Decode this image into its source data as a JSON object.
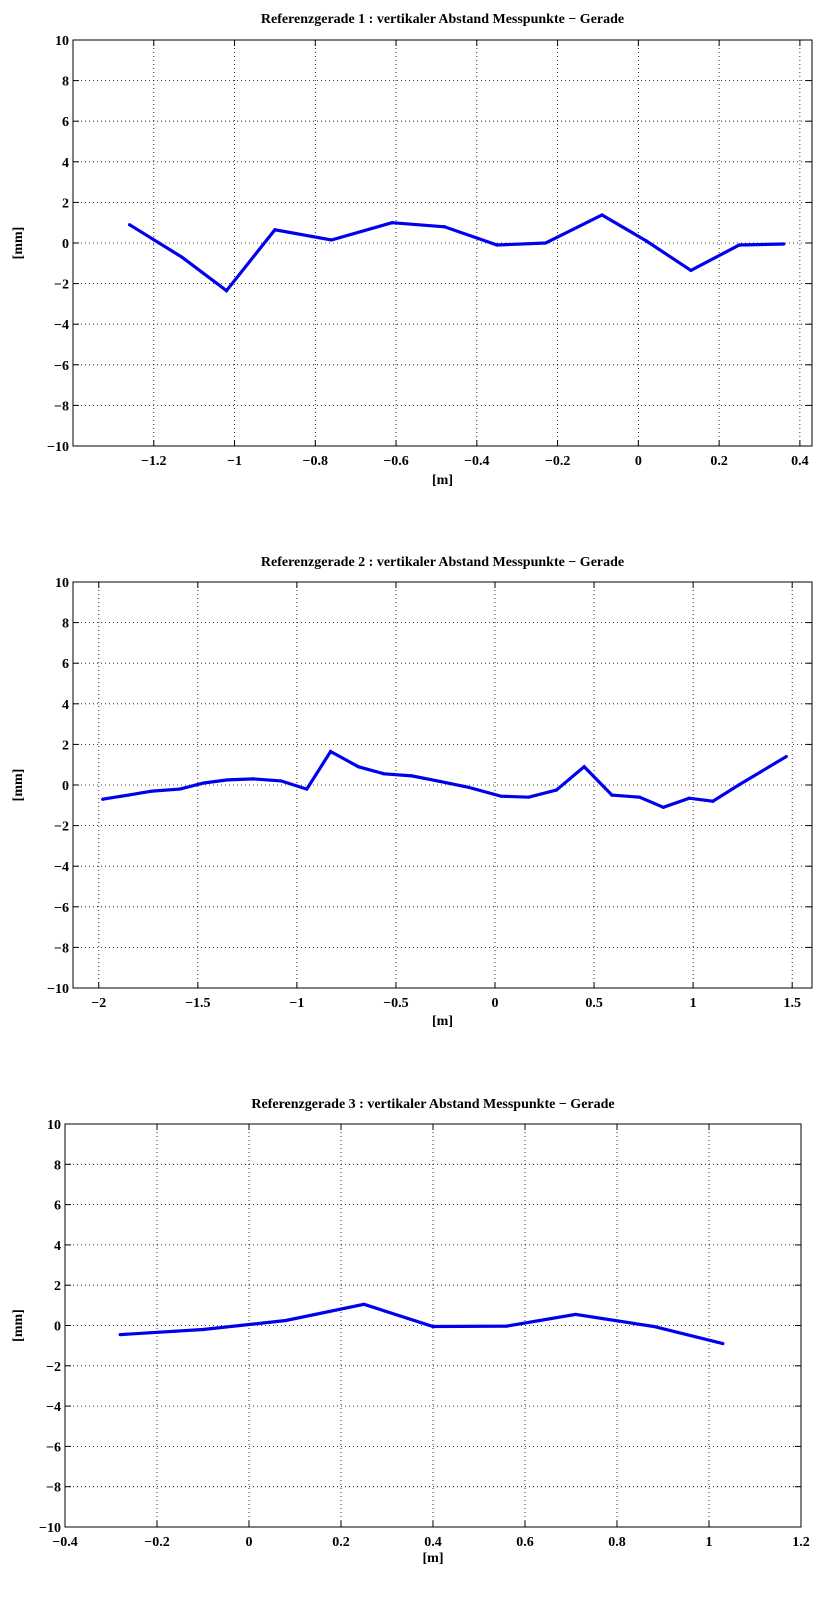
{
  "chart_data": [
    {
      "type": "line",
      "title": "Referenzgerade 1 : vertikaler Abstand Messpunkte − Gerade",
      "xlabel": "[m]",
      "ylabel": "[mm]",
      "xlim": [
        -1.4,
        0.43
      ],
      "ylim": [
        -10,
        10
      ],
      "xticks": [
        -1.2,
        -1,
        -0.8,
        -0.6,
        -0.4,
        -0.2,
        0,
        0.2,
        0.4
      ],
      "xtick_labels": [
        "−1.2",
        "−1",
        "−0.8",
        "−0.6",
        "−0.4",
        "−0.2",
        "0",
        "0.2",
        "0.4"
      ],
      "yticks": [
        -10,
        -8,
        -6,
        -4,
        -2,
        0,
        2,
        4,
        6,
        8,
        10
      ],
      "ytick_labels": [
        "−10",
        "−8",
        "−6",
        "−4",
        "−2",
        "0",
        "2",
        "4",
        "6",
        "8",
        "10"
      ],
      "grid": true,
      "color": "#0000ee",
      "x": [
        -1.26,
        -1.13,
        -1.02,
        -0.9,
        -0.76,
        -0.61,
        -0.48,
        -0.35,
        -0.23,
        -0.09,
        0.02,
        0.13,
        0.25,
        0.36
      ],
      "y": [
        0.9,
        -0.7,
        -2.35,
        0.65,
        0.15,
        1.0,
        0.8,
        -0.1,
        0.0,
        1.38,
        0.1,
        -1.35,
        -0.1,
        -0.05
      ]
    },
    {
      "type": "line",
      "title": "Referenzgerade 2 : vertikaler Abstand Messpunkte − Gerade",
      "xlabel": "[m]",
      "ylabel": "[mm]",
      "xlim": [
        -2.13,
        1.6
      ],
      "ylim": [
        -10,
        10
      ],
      "xticks": [
        -2,
        -1.5,
        -1,
        -0.5,
        0,
        0.5,
        1,
        1.5
      ],
      "xtick_labels": [
        "−2",
        "−1.5",
        "−1",
        "−0.5",
        "0",
        "0.5",
        "1",
        "1.5"
      ],
      "yticks": [
        -10,
        -8,
        -6,
        -4,
        -2,
        0,
        2,
        4,
        6,
        8,
        10
      ],
      "ytick_labels": [
        "−10",
        "−8",
        "−6",
        "−4",
        "−2",
        "0",
        "2",
        "4",
        "6",
        "8",
        "10"
      ],
      "grid": true,
      "color": "#0000ee",
      "x": [
        -1.98,
        -1.85,
        -1.73,
        -1.59,
        -1.47,
        -1.35,
        -1.22,
        -1.08,
        -0.95,
        -0.83,
        -0.69,
        -0.56,
        -0.42,
        -0.29,
        -0.14,
        0.03,
        0.17,
        0.31,
        0.45,
        0.59,
        0.73,
        0.85,
        0.98,
        1.1,
        1.23,
        1.47
      ],
      "y": [
        -0.7,
        -0.5,
        -0.3,
        -0.2,
        0.1,
        0.25,
        0.3,
        0.2,
        -0.2,
        1.65,
        0.9,
        0.55,
        0.45,
        0.2,
        -0.1,
        -0.55,
        -0.6,
        -0.25,
        0.9,
        -0.5,
        -0.6,
        -1.1,
        -0.65,
        -0.8,
        0.0,
        1.4
      ]
    },
    {
      "type": "line",
      "title": "Referenzgerade 3 : vertikaler Abstand Messpunkte − Gerade",
      "xlabel": "[m]",
      "ylabel": "[mm]",
      "xlim": [
        -0.4,
        1.2
      ],
      "ylim": [
        -10,
        10
      ],
      "xticks": [
        -0.4,
        -0.2,
        0,
        0.2,
        0.4,
        0.6,
        0.8,
        1,
        1.2
      ],
      "xtick_labels": [
        "−0.4",
        "−0.2",
        "0",
        "0.2",
        "0.4",
        "0.6",
        "0.8",
        "1",
        "1.2"
      ],
      "yticks": [
        -10,
        -8,
        -6,
        -4,
        -2,
        0,
        2,
        4,
        6,
        8,
        10
      ],
      "ytick_labels": [
        "−10",
        "−8",
        "−6",
        "−4",
        "−2",
        "0",
        "2",
        "4",
        "6",
        "8",
        "10"
      ],
      "grid": true,
      "color": "#0000ee",
      "x": [
        -0.28,
        -0.1,
        0.08,
        0.25,
        0.4,
        0.56,
        0.71,
        0.88,
        1.03
      ],
      "y": [
        -0.45,
        -0.2,
        0.25,
        1.05,
        -0.05,
        -0.03,
        0.55,
        -0.05,
        -0.9
      ]
    }
  ]
}
